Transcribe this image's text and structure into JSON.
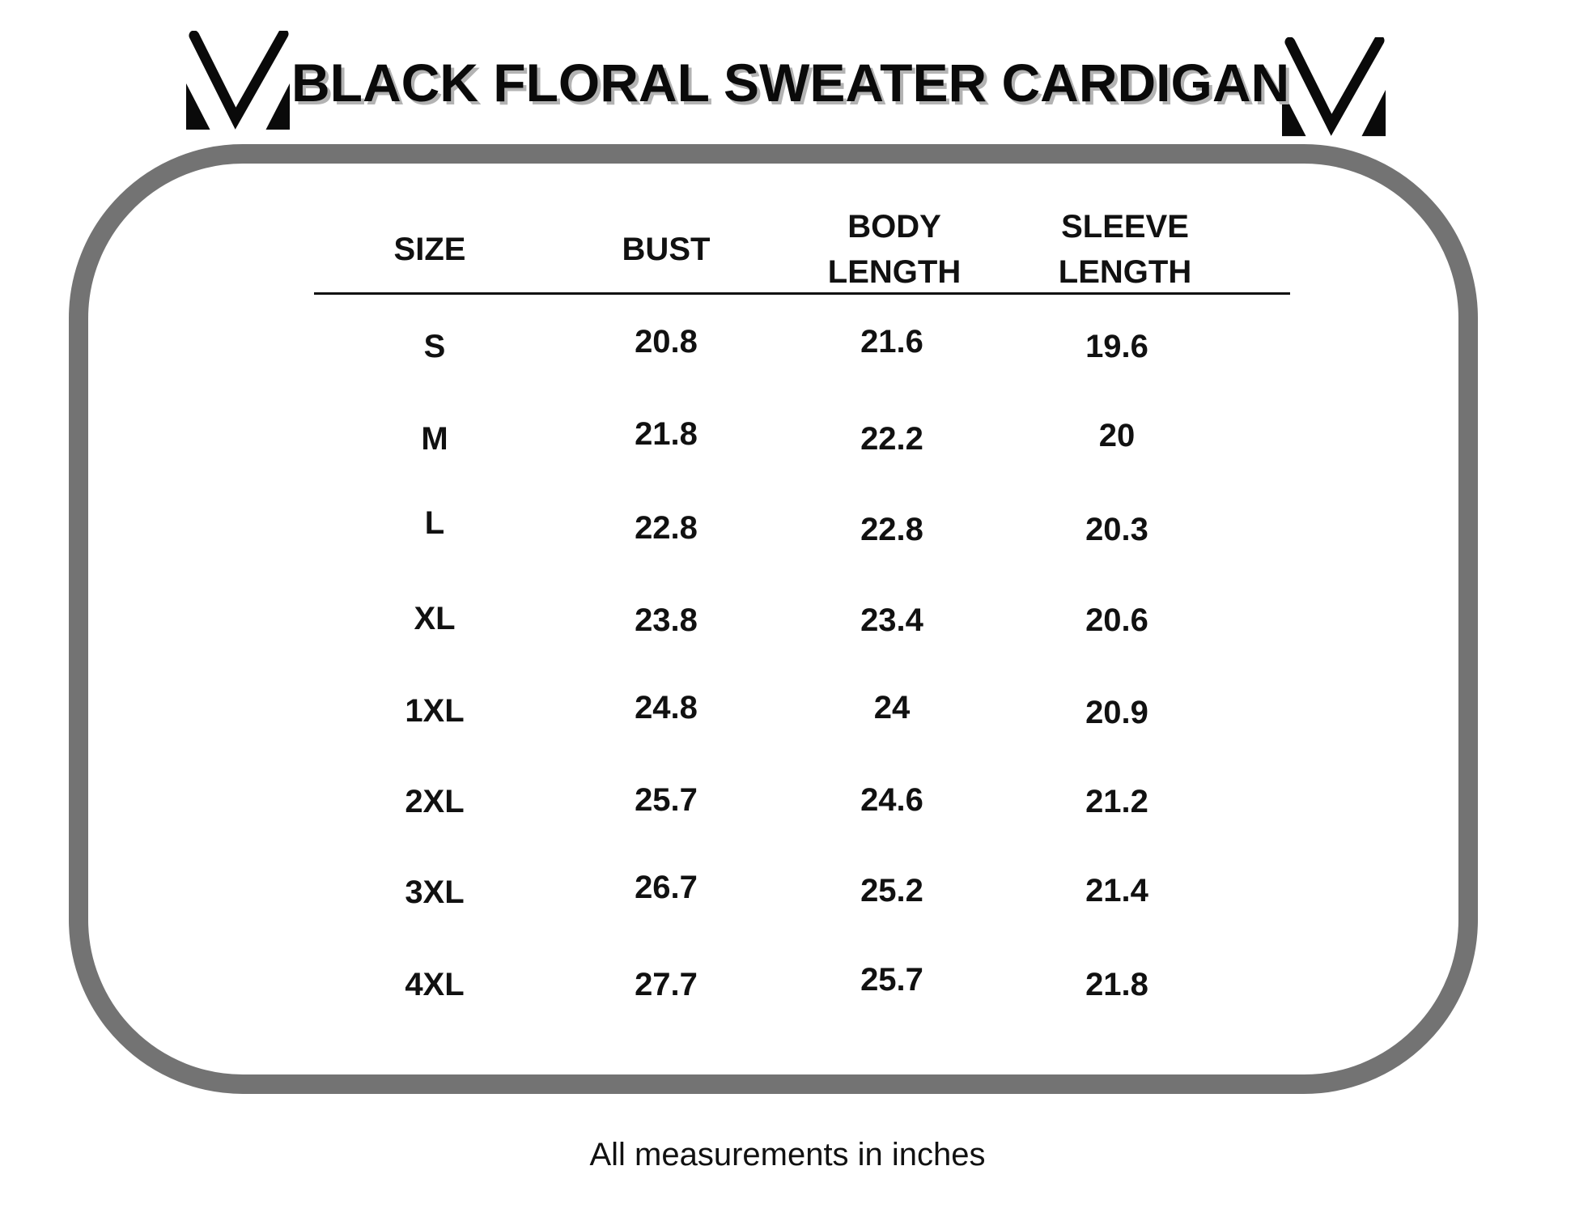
{
  "title": "BLACK FLORAL SWEATER CARDIGAN",
  "logo_icon": "v-monogram-icon",
  "colors": {
    "card_border": "#737373",
    "text": "#111111",
    "title_shadow": "#b3b3b3"
  },
  "table": {
    "headers": {
      "size": "SIZE",
      "bust": "BUST",
      "body_length_line1": "BODY",
      "body_length_line2": "LENGTH",
      "sleeve_length_line1": "SLEEVE",
      "sleeve_length_line2": "LENGTH"
    },
    "rows": [
      {
        "size": "S",
        "bust": "20.8",
        "body_length": "21.6",
        "sleeve_length": "19.6"
      },
      {
        "size": "M",
        "bust": "21.8",
        "body_length": "22.2",
        "sleeve_length": "20"
      },
      {
        "size": "L",
        "bust": "22.8",
        "body_length": "22.8",
        "sleeve_length": "20.3"
      },
      {
        "size": "XL",
        "bust": "23.8",
        "body_length": "23.4",
        "sleeve_length": "20.6"
      },
      {
        "size": "1XL",
        "bust": "24.8",
        "body_length": "24",
        "sleeve_length": "20.9"
      },
      {
        "size": "2XL",
        "bust": "25.7",
        "body_length": "24.6",
        "sleeve_length": "21.2"
      },
      {
        "size": "3XL",
        "bust": "26.7",
        "body_length": "25.2",
        "sleeve_length": "21.4"
      },
      {
        "size": "4XL",
        "bust": "27.7",
        "body_length": "25.7",
        "sleeve_length": "21.8"
      }
    ]
  },
  "footnote": "All measurements in inches"
}
